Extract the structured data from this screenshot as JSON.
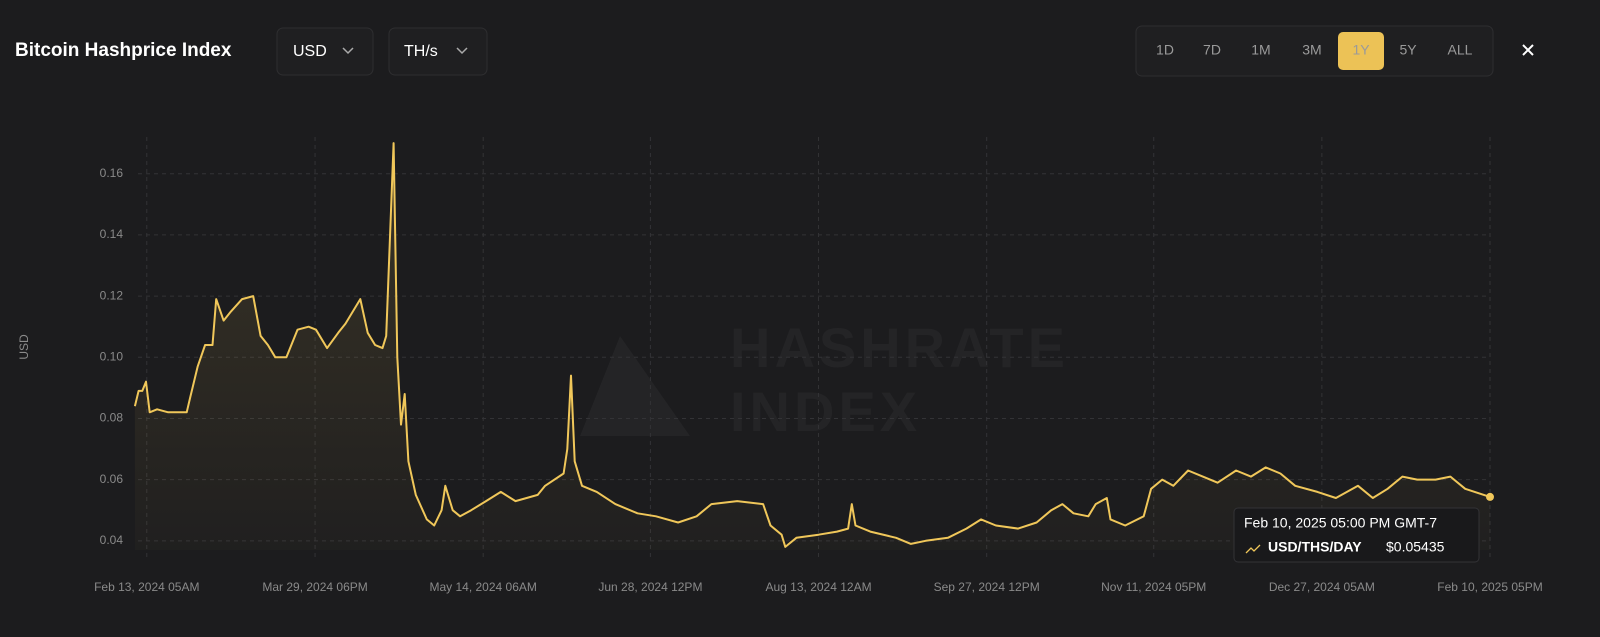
{
  "header": {
    "title": "Bitcoin Hashprice Index",
    "currency": "USD",
    "unit": "TH/s",
    "ranges": [
      "1D",
      "7D",
      "1M",
      "3M",
      "1Y",
      "5Y",
      "ALL"
    ],
    "active_range": 4
  },
  "chart_data": {
    "type": "line",
    "y_label": "USD",
    "watermark": [
      "HASHRATE",
      "INDEX"
    ],
    "x": [
      "2024-02-10",
      "2024-02-11",
      "2024-02-12",
      "2024-02-13",
      "2024-02-14",
      "2024-02-16",
      "2024-02-19",
      "2024-02-21",
      "2024-02-24",
      "2024-02-25",
      "2024-02-27",
      "2024-02-29",
      "2024-03-02",
      "2024-03-03",
      "2024-03-05",
      "2024-03-07",
      "2024-03-10",
      "2024-03-13",
      "2024-03-15",
      "2024-03-17",
      "2024-03-19",
      "2024-03-22",
      "2024-03-25",
      "2024-03-28",
      "2024-03-30",
      "2024-04-02",
      "2024-04-05",
      "2024-04-07",
      "2024-04-11",
      "2024-04-13",
      "2024-04-15",
      "2024-04-17",
      "2024-04-18",
      "2024-04-20",
      "2024-04-21",
      "2024-04-22",
      "2024-04-23",
      "2024-04-24",
      "2024-04-26",
      "2024-04-29",
      "2024-05-01",
      "2024-05-03",
      "2024-05-04",
      "2024-05-06",
      "2024-05-08",
      "2024-05-11",
      "2024-05-15",
      "2024-05-19",
      "2024-05-23",
      "2024-05-29",
      "2024-05-31",
      "2024-06-05",
      "2024-06-06",
      "2024-06-07",
      "2024-06-08",
      "2024-06-10",
      "2024-06-14",
      "2024-06-19",
      "2024-06-25",
      "2024-06-30",
      "2024-07-06",
      "2024-07-11",
      "2024-07-15",
      "2024-07-22",
      "2024-07-29",
      "2024-07-31",
      "2024-08-03",
      "2024-08-04",
      "2024-08-07",
      "2024-08-13",
      "2024-08-18",
      "2024-08-21",
      "2024-08-22",
      "2024-08-23",
      "2024-08-27",
      "2024-09-03",
      "2024-09-07",
      "2024-09-11",
      "2024-09-17",
      "2024-09-22",
      "2024-09-26",
      "2024-09-30",
      "2024-10-06",
      "2024-10-11",
      "2024-10-15",
      "2024-10-18",
      "2024-10-21",
      "2024-10-25",
      "2024-10-27",
      "2024-10-30",
      "2024-10-31",
      "2024-11-04",
      "2024-11-09",
      "2024-11-11",
      "2024-11-14",
      "2024-11-17",
      "2024-11-21",
      "2024-11-25",
      "2024-11-29",
      "2024-12-04",
      "2024-12-08",
      "2024-12-12",
      "2024-12-16",
      "2024-12-20",
      "2024-12-26",
      "2024-12-31",
      "2025-01-06",
      "2025-01-10",
      "2025-01-14",
      "2025-01-18",
      "2025-01-22",
      "2025-01-27",
      "2025-01-31",
      "2025-02-04",
      "2025-02-10T17:00"
    ],
    "series": [
      {
        "name": "USD/THS/DAY",
        "color": "#f0c75a",
        "values": [
          0.084,
          0.089,
          0.089,
          0.092,
          0.082,
          0.083,
          0.082,
          0.082,
          0.082,
          0.087,
          0.097,
          0.104,
          0.104,
          0.119,
          0.112,
          0.115,
          0.119,
          0.12,
          0.107,
          0.104,
          0.1,
          0.1,
          0.109,
          0.11,
          0.109,
          0.103,
          0.108,
          0.111,
          0.119,
          0.108,
          0.104,
          0.103,
          0.107,
          0.17,
          0.1,
          0.078,
          0.088,
          0.066,
          0.055,
          0.047,
          0.045,
          0.05,
          0.058,
          0.05,
          0.048,
          0.05,
          0.053,
          0.056,
          0.053,
          0.055,
          0.058,
          0.062,
          0.07,
          0.094,
          0.066,
          0.058,
          0.056,
          0.052,
          0.049,
          0.048,
          0.046,
          0.048,
          0.052,
          0.053,
          0.052,
          0.045,
          0.042,
          0.038,
          0.041,
          0.042,
          0.043,
          0.044,
          0.052,
          0.045,
          0.043,
          0.041,
          0.039,
          0.04,
          0.041,
          0.044,
          0.047,
          0.045,
          0.044,
          0.046,
          0.05,
          0.052,
          0.049,
          0.048,
          0.052,
          0.054,
          0.047,
          0.045,
          0.048,
          0.057,
          0.06,
          0.058,
          0.063,
          0.061,
          0.059,
          0.063,
          0.061,
          0.064,
          0.062,
          0.058,
          0.056,
          0.054,
          0.058,
          0.054,
          0.057,
          0.061,
          0.06,
          0.06,
          0.061,
          0.057,
          0.05435
        ]
      }
    ],
    "xlim": [
      "2024-02-10T20:00",
      "2025-02-10T17:00"
    ],
    "xticks": [
      {
        "value": "2024-02-13T05:00",
        "label": "Feb 13, 2024 05AM"
      },
      {
        "value": "2024-03-29T18:00",
        "label": "Mar 29, 2024 06PM"
      },
      {
        "value": "2024-05-14T06:00",
        "label": "May 14, 2024 06AM"
      },
      {
        "value": "2024-06-28T12:00",
        "label": "Jun 28, 2024 12PM"
      },
      {
        "value": "2024-08-13T00:00",
        "label": "Aug 13, 2024 12AM"
      },
      {
        "value": "2024-09-27T12:00",
        "label": "Sep 27, 2024 12PM"
      },
      {
        "value": "2024-11-11T17:00",
        "label": "Nov 11, 2024 05PM"
      },
      {
        "value": "2024-12-27T05:00",
        "label": "Dec 27, 2024 05AM"
      },
      {
        "value": "2025-02-10T17:00",
        "label": "Feb 10, 2025 05PM"
      }
    ],
    "ylim": [
      0.037,
      0.172
    ],
    "yticks": [
      0.04,
      0.06,
      0.08,
      {
        "value": 0.1,
        "label": "0.10"
      },
      0.12,
      0.14,
      0.16
    ],
    "grid": true,
    "tooltip": {
      "date": "Feb 10, 2025 05:00 PM GMT-7",
      "value_label": "$0.05435"
    }
  }
}
